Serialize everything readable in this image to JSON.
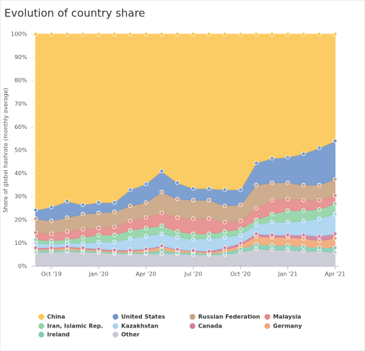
{
  "chart_data": {
    "type": "stacked_area",
    "title": "Evolution of country share",
    "y_label": "Share of global hashrate (monthly average)",
    "x": [
      "2019-09",
      "2019-10",
      "2019-11",
      "2019-12",
      "2020-01",
      "2020-02",
      "2020-03",
      "2020-04",
      "2020-05",
      "2020-06",
      "2020-07",
      "2020-08",
      "2020-09",
      "2020-10",
      "2020-11",
      "2020-12",
      "2021-01",
      "2021-02",
      "2021-03",
      "2021-04"
    ],
    "xticks": [
      {
        "value": "2019-10",
        "label": "Oct '19"
      },
      {
        "value": "2020-01",
        "label": "Jan '20"
      },
      {
        "value": "2020-04",
        "label": "Apr '20"
      },
      {
        "value": "2020-07",
        "label": "Jul '20"
      },
      {
        "value": "2020-10",
        "label": "Oct '20"
      },
      {
        "value": "2021-01",
        "label": "Jan '21"
      },
      {
        "value": "2021-04",
        "label": "Apr '21"
      }
    ],
    "ylim": [
      0,
      100
    ],
    "yticks": [
      {
        "value": 0,
        "label": "0%"
      },
      {
        "value": 10,
        "label": "10%"
      },
      {
        "value": 20,
        "label": "20%"
      },
      {
        "value": 30,
        "label": "30%"
      },
      {
        "value": 40,
        "label": "40%"
      },
      {
        "value": 50,
        "label": "50%"
      },
      {
        "value": 60,
        "label": "60%"
      },
      {
        "value": 70,
        "label": "70%"
      },
      {
        "value": 80,
        "label": "80%"
      },
      {
        "value": 90,
        "label": "90%"
      },
      {
        "value": 100,
        "label": "100%"
      }
    ],
    "series": [
      {
        "name": "China",
        "color": "#fcc653",
        "values": [
          75.8,
          74.5,
          72,
          73.5,
          72.5,
          72.5,
          67,
          64.5,
          59,
          64,
          66.5,
          66.5,
          67,
          67,
          55.5,
          53.5,
          53,
          51.5,
          49,
          46
        ]
      },
      {
        "name": "United States",
        "color": "#7096cc",
        "values": [
          3.7,
          6,
          7,
          4,
          4.5,
          4,
          7,
          8,
          9,
          7,
          5,
          5,
          7,
          6.5,
          9.5,
          10.5,
          11,
          13.5,
          16,
          16.5
        ]
      },
      {
        "name": "Russian Federation",
        "color": "#c9a382",
        "values": [
          6,
          5.5,
          6,
          6.5,
          6.5,
          6.5,
          6.5,
          6.5,
          9,
          8,
          8,
          8,
          7,
          7,
          10,
          7.5,
          7,
          6.5,
          6.5,
          7
        ]
      },
      {
        "name": "Malaysia",
        "color": "#e5898a",
        "values": [
          3,
          3,
          3.5,
          3.5,
          3,
          3.5,
          4,
          4.5,
          5.5,
          6,
          6.5,
          6.5,
          4,
          3.5,
          5,
          6,
          5,
          4.5,
          4,
          3.5
        ]
      },
      {
        "name": "Iran, Islamic Rep.",
        "color": "#8fd3a5",
        "values": [
          1.5,
          1.5,
          1.5,
          2.5,
          3,
          3,
          3.5,
          3.5,
          3.5,
          2.5,
          2.5,
          2,
          2.5,
          2.5,
          2,
          3.5,
          5,
          4.5,
          4,
          4.5
        ]
      },
      {
        "name": "Kazakhstan",
        "color": "#a9d3f0",
        "values": [
          2,
          1.5,
          1.5,
          2,
          3,
          3.5,
          5,
          5.5,
          5.2,
          5.2,
          4.7,
          5.5,
          4.5,
          3.5,
          4,
          5.5,
          5.5,
          6,
          7.5,
          8.5
        ]
      },
      {
        "name": "Canada",
        "color": "#cf7f9d",
        "values": [
          0.5,
          0.5,
          0.5,
          0.5,
          0.5,
          0.5,
          0.5,
          0.5,
          0.3,
          0.3,
          0.3,
          0.5,
          1,
          1,
          1,
          1,
          1,
          1.5,
          2,
          2
        ]
      },
      {
        "name": "Germany",
        "color": "#f0a878",
        "values": [
          0.5,
          0.5,
          1,
          0.5,
          0.5,
          0.5,
          0.5,
          1,
          1.5,
          1,
          0.5,
          0.5,
          1,
          1.5,
          3.5,
          3.5,
          3.5,
          3.5,
          3,
          4
        ]
      },
      {
        "name": "Ireland",
        "color": "#82cdb3",
        "values": [
          1,
          1,
          0.5,
          1,
          0.5,
          0.5,
          0.5,
          0.5,
          1.5,
          0.5,
          1,
          0.5,
          1,
          1.5,
          2,
          2,
          2,
          2,
          1.5,
          2
        ]
      },
      {
        "name": "Other",
        "color": "#c6c8d3",
        "values": [
          6,
          6,
          6.5,
          6,
          6,
          5.5,
          5.5,
          5.5,
          5.5,
          5.5,
          5,
          5,
          5,
          6,
          7.5,
          7,
          7,
          6.5,
          6.5,
          6
        ]
      }
    ]
  }
}
